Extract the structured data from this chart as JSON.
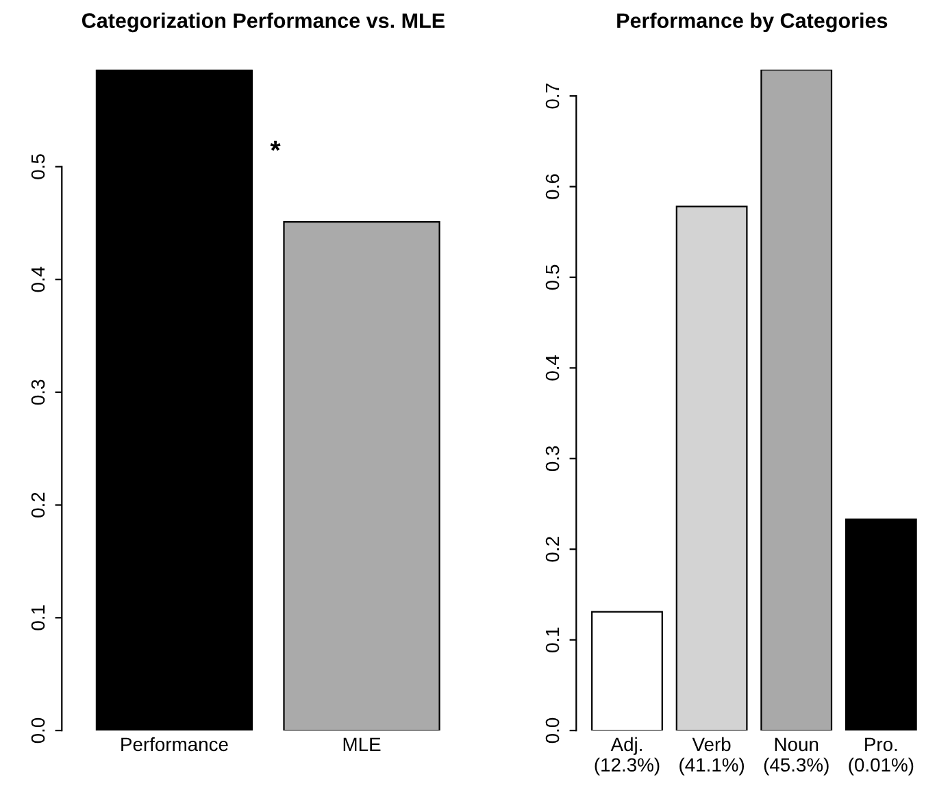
{
  "chart_data": [
    {
      "type": "bar",
      "title": "Categorization Performance vs. MLE",
      "categories": [
        "Performance",
        "MLE"
      ],
      "values": [
        0.586,
        0.451
      ],
      "colors": [
        "#000000",
        "#aaaaaa"
      ],
      "ylim": [
        0,
        0.586
      ],
      "yticks": [
        {
          "value": 0,
          "label": "0.0"
        },
        0.1,
        0.2,
        0.3,
        0.4,
        0.5
      ],
      "annotations": [
        "*"
      ],
      "grid": false
    },
    {
      "type": "bar",
      "title": "Performance by Categories",
      "categories": [
        "Adj.\n(12.3%)",
        "Verb\n(41.1%)",
        "Noun\n(45.3%)",
        "Pro.\n(0.01%)"
      ],
      "values": [
        0.131,
        0.578,
        0.729,
        0.233
      ],
      "colors": [
        "#ffffff",
        "#d3d3d3",
        "#a9a9a9",
        "#000000"
      ],
      "ylim": [
        0,
        0.729
      ],
      "yticks": [
        {
          "value": 0,
          "label": "0.0"
        },
        0.1,
        0.2,
        0.3,
        0.4,
        0.5,
        0.6,
        0.7
      ],
      "grid": false
    }
  ]
}
